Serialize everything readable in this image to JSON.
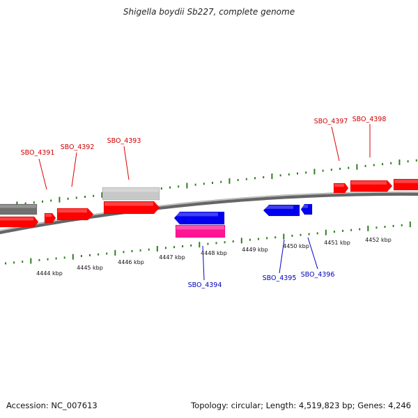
{
  "header": {
    "title": "Shigella boydii Sb227, complete genome"
  },
  "footer": {
    "accession": "Accession: NC_007613",
    "info": "Topology: circular; Length: 4,519,823 bp; Genes: 4,246"
  },
  "colors": {
    "forward_gene": "#ff0000",
    "reverse_gene": "#0000ee",
    "pseudo_gene": "#ff1493",
    "rna_gene": "#c8c8c8",
    "other_gene": "#707070",
    "tick": "#2e7d1e",
    "backbone": "#888888",
    "forward_label": "#cc0000",
    "reverse_label": "#0000bb"
  },
  "position_ticks": [
    {
      "label": "4444 kbp"
    },
    {
      "label": "4445 kbp"
    },
    {
      "label": "4446 kbp"
    },
    {
      "label": "4447 kbp"
    },
    {
      "label": "4448 kbp"
    },
    {
      "label": "4449 kbp"
    },
    {
      "label": "4450 kbp"
    },
    {
      "label": "4451 kbp"
    },
    {
      "label": "4452 kbp"
    }
  ],
  "forward_labels": [
    {
      "label": "SBO_4391"
    },
    {
      "label": "SBO_4392"
    },
    {
      "label": "SBO_4393"
    },
    {
      "label": "SBO_4397"
    },
    {
      "label": "SBO_4398"
    }
  ],
  "reverse_labels": [
    {
      "label": "SBO_4394"
    },
    {
      "label": "SBO_4395"
    },
    {
      "label": "SBO_4396"
    }
  ]
}
